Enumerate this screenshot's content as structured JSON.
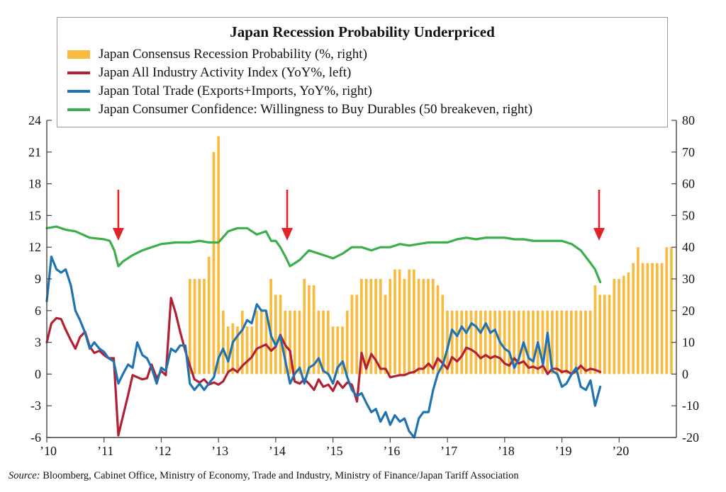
{
  "colors": {
    "bar": "#F9BB3D",
    "activity": "#B22033",
    "trade": "#1F73B1",
    "confidence": "#3AAF4B",
    "arrow": "#E2232A",
    "axis": "#444444"
  },
  "source": {
    "label": "Source:",
    "text": "Bloomberg, Cabinet Office, Ministry of Economy, Trade and Industry, Ministry of Finance/Japan Tariff Association"
  },
  "chart_data": {
    "type": "combo",
    "title": "Japan Recession Probability Underpriced",
    "legend": [
      {
        "name": "Japan Consensus Recession Probability (%, right)",
        "kind": "bar",
        "color": "#F9BB3D"
      },
      {
        "name": "Japan All Industry Activity Index (YoY%, left)",
        "kind": "line",
        "color": "#B22033"
      },
      {
        "name": "Japan Total Trade (Exports+Imports, YoY%, right)",
        "kind": "line",
        "color": "#1F73B1"
      },
      {
        "name": "Japan Consumer Confidence: Willingness to Buy Durables (50 breakeven, right)",
        "kind": "line",
        "color": "#3AAF4B"
      }
    ],
    "x_range": [
      2010,
      2021
    ],
    "x_ticks": [
      {
        "value": 2010,
        "label": "’10"
      },
      {
        "value": 2011,
        "label": "’11"
      },
      {
        "value": 2012,
        "label": "’12"
      },
      {
        "value": 2013,
        "label": "’13"
      },
      {
        "value": 2014,
        "label": "’14"
      },
      {
        "value": 2015,
        "label": "’15"
      },
      {
        "value": 2016,
        "label": "’16"
      },
      {
        "value": 2017,
        "label": "’17"
      },
      {
        "value": 2018,
        "label": "’18"
      },
      {
        "value": 2019,
        "label": "’19"
      },
      {
        "value": 2020,
        "label": "’20"
      }
    ],
    "left_axis": {
      "range": [
        -6,
        24
      ],
      "ticks": [
        -6,
        -3,
        0,
        3,
        6,
        9,
        12,
        15,
        18,
        21,
        24
      ]
    },
    "right_axis": {
      "range": [
        -20,
        80
      ],
      "ticks": [
        -20,
        -10,
        0,
        10,
        20,
        30,
        40,
        50,
        60,
        70,
        80
      ]
    },
    "arrows": [
      2011.25,
      2014.2,
      2019.65
    ],
    "recession_probability": {
      "axis": "right",
      "x_start": 2012.5,
      "x_step": 0.0833,
      "values": [
        30,
        30,
        30,
        30,
        37,
        70,
        75,
        20,
        15,
        16,
        15,
        20,
        15,
        15,
        20,
        20,
        20,
        30,
        25,
        25,
        20,
        20,
        20,
        20,
        30,
        28,
        28,
        20,
        20,
        20,
        15,
        15,
        15,
        20,
        25,
        25,
        30,
        30,
        30,
        30,
        30,
        25,
        30,
        33,
        33,
        30,
        33,
        33,
        30,
        30,
        30,
        30,
        28,
        25,
        20,
        20,
        20,
        20,
        20,
        20,
        20,
        20,
        20,
        20,
        20,
        20,
        20,
        20,
        20,
        20,
        20,
        20,
        20,
        20,
        20,
        20,
        20,
        20,
        20,
        20,
        20,
        20,
        20,
        20,
        20,
        28,
        25,
        25,
        25,
        30,
        30,
        31,
        32,
        35,
        40,
        35,
        35,
        35,
        35,
        35,
        40,
        40
      ]
    },
    "activity_index": {
      "axis": "left",
      "points": [
        [
          2010.0,
          3.0
        ],
        [
          2010.08,
          4.8
        ],
        [
          2010.17,
          5.3
        ],
        [
          2010.25,
          5.2
        ],
        [
          2010.33,
          4.2
        ],
        [
          2010.42,
          3.2
        ],
        [
          2010.5,
          2.4
        ],
        [
          2010.58,
          3.5
        ],
        [
          2010.67,
          4.0
        ],
        [
          2010.75,
          2.6
        ],
        [
          2010.83,
          2.0
        ],
        [
          2010.92,
          2.2
        ],
        [
          2011.0,
          1.8
        ],
        [
          2011.08,
          1.5
        ],
        [
          2011.17,
          1.5
        ],
        [
          2011.25,
          -5.8
        ],
        [
          2011.33,
          -4.0
        ],
        [
          2011.42,
          -2.0
        ],
        [
          2011.5,
          -0.1
        ],
        [
          2011.58,
          -0.3
        ],
        [
          2011.67,
          -0.5
        ],
        [
          2011.75,
          -0.4
        ],
        [
          2011.83,
          0.9
        ],
        [
          2011.92,
          -0.4
        ],
        [
          2012.0,
          0.3
        ],
        [
          2012.08,
          -0.1
        ],
        [
          2012.17,
          7.2
        ],
        [
          2012.25,
          5.8
        ],
        [
          2012.33,
          4.0
        ],
        [
          2012.42,
          2.2
        ],
        [
          2012.5,
          0.8
        ],
        [
          2012.58,
          -0.5
        ],
        [
          2012.67,
          -0.8
        ],
        [
          2012.75,
          -0.5
        ],
        [
          2012.83,
          -1.0
        ],
        [
          2012.92,
          -0.8
        ],
        [
          2013.0,
          -1.0
        ],
        [
          2013.08,
          -0.7
        ],
        [
          2013.17,
          0.2
        ],
        [
          2013.25,
          0.5
        ],
        [
          2013.33,
          0.2
        ],
        [
          2013.42,
          0.8
        ],
        [
          2013.5,
          1.2
        ],
        [
          2013.58,
          1.6
        ],
        [
          2013.67,
          2.4
        ],
        [
          2013.75,
          2.6
        ],
        [
          2013.83,
          2.8
        ],
        [
          2013.92,
          2.2
        ],
        [
          2014.0,
          2.6
        ],
        [
          2014.08,
          3.7
        ],
        [
          2014.17,
          2.7
        ],
        [
          2014.25,
          2.2
        ],
        [
          2014.33,
          -0.7
        ],
        [
          2014.42,
          -0.9
        ],
        [
          2014.5,
          -0.5
        ],
        [
          2014.58,
          -0.9
        ],
        [
          2014.67,
          -1.5
        ],
        [
          2014.75,
          -0.5
        ],
        [
          2014.83,
          -1.2
        ],
        [
          2014.92,
          -1.0
        ],
        [
          2015.0,
          -1.6
        ],
        [
          2015.08,
          -0.7
        ],
        [
          2015.17,
          -1.3
        ],
        [
          2015.25,
          -0.8
        ],
        [
          2015.33,
          -1.0
        ],
        [
          2015.42,
          -2.6
        ],
        [
          2015.5,
          2.0
        ],
        [
          2015.58,
          0.5
        ],
        [
          2015.67,
          1.9
        ],
        [
          2015.75,
          1.3
        ],
        [
          2015.83,
          0.5
        ],
        [
          2015.92,
          0.5
        ],
        [
          2016.0,
          -0.3
        ],
        [
          2016.08,
          -0.2
        ],
        [
          2016.17,
          -0.1
        ],
        [
          2016.25,
          -0.1
        ],
        [
          2016.33,
          0.1
        ],
        [
          2016.42,
          0.2
        ],
        [
          2016.5,
          0.5
        ],
        [
          2016.58,
          0.5
        ],
        [
          2016.67,
          1.0
        ],
        [
          2016.75,
          0.5
        ],
        [
          2016.83,
          1.5
        ],
        [
          2016.92,
          1.0
        ],
        [
          2017.0,
          0.5
        ],
        [
          2017.08,
          1.6
        ],
        [
          2017.17,
          1.2
        ],
        [
          2017.25,
          1.7
        ],
        [
          2017.33,
          2.5
        ],
        [
          2017.42,
          2.3
        ],
        [
          2017.5,
          2.0
        ],
        [
          2017.58,
          1.5
        ],
        [
          2017.67,
          1.8
        ],
        [
          2017.75,
          1.5
        ],
        [
          2017.83,
          1.7
        ],
        [
          2017.92,
          1.5
        ],
        [
          2018.0,
          1.0
        ],
        [
          2018.08,
          0.8
        ],
        [
          2018.17,
          1.5
        ],
        [
          2018.25,
          1.0
        ],
        [
          2018.33,
          1.2
        ],
        [
          2018.42,
          0.6
        ],
        [
          2018.5,
          0.7
        ],
        [
          2018.58,
          0.5
        ],
        [
          2018.67,
          0.8
        ],
        [
          2018.75,
          0.0
        ],
        [
          2018.83,
          0.5
        ],
        [
          2018.92,
          0.5
        ],
        [
          2019.0,
          0.2
        ],
        [
          2019.08,
          0.3
        ],
        [
          2019.17,
          0.0
        ],
        [
          2019.25,
          0.3
        ],
        [
          2019.33,
          0.8
        ],
        [
          2019.42,
          0.3
        ],
        [
          2019.5,
          0.5
        ],
        [
          2019.58,
          0.4
        ],
        [
          2019.67,
          0.2
        ]
      ]
    },
    "total_trade": {
      "axis": "right",
      "points": [
        [
          2010.0,
          23
        ],
        [
          2010.08,
          37
        ],
        [
          2010.17,
          33
        ],
        [
          2010.25,
          32
        ],
        [
          2010.33,
          33
        ],
        [
          2010.42,
          28
        ],
        [
          2010.5,
          20
        ],
        [
          2010.58,
          17
        ],
        [
          2010.67,
          13
        ],
        [
          2010.75,
          8
        ],
        [
          2010.83,
          10
        ],
        [
          2010.92,
          8
        ],
        [
          2011.0,
          7
        ],
        [
          2011.08,
          5
        ],
        [
          2011.17,
          4
        ],
        [
          2011.25,
          -3
        ],
        [
          2011.33,
          0
        ],
        [
          2011.42,
          3
        ],
        [
          2011.5,
          2
        ],
        [
          2011.58,
          10
        ],
        [
          2011.67,
          6
        ],
        [
          2011.75,
          5
        ],
        [
          2011.83,
          2
        ],
        [
          2011.92,
          -3
        ],
        [
          2012.0,
          2
        ],
        [
          2012.08,
          1
        ],
        [
          2012.17,
          8
        ],
        [
          2012.25,
          7
        ],
        [
          2012.33,
          9
        ],
        [
          2012.42,
          9
        ],
        [
          2012.5,
          -3
        ],
        [
          2012.58,
          -5
        ],
        [
          2012.67,
          -3
        ],
        [
          2012.75,
          -5
        ],
        [
          2012.83,
          -3
        ],
        [
          2012.92,
          -1
        ],
        [
          2013.0,
          5
        ],
        [
          2013.08,
          8
        ],
        [
          2013.17,
          4
        ],
        [
          2013.25,
          10
        ],
        [
          2013.33,
          12
        ],
        [
          2013.42,
          14
        ],
        [
          2013.5,
          17
        ],
        [
          2013.58,
          16
        ],
        [
          2013.67,
          22
        ],
        [
          2013.75,
          20
        ],
        [
          2013.83,
          20
        ],
        [
          2013.92,
          12
        ],
        [
          2014.0,
          9
        ],
        [
          2014.08,
          12
        ],
        [
          2014.17,
          4
        ],
        [
          2014.25,
          -3
        ],
        [
          2014.33,
          0
        ],
        [
          2014.42,
          2
        ],
        [
          2014.5,
          -3
        ],
        [
          2014.58,
          2
        ],
        [
          2014.67,
          3
        ],
        [
          2014.75,
          5
        ],
        [
          2014.83,
          1
        ],
        [
          2014.92,
          0
        ],
        [
          2015.0,
          -3
        ],
        [
          2015.08,
          2
        ],
        [
          2015.17,
          4
        ],
        [
          2015.25,
          -1
        ],
        [
          2015.33,
          -5
        ],
        [
          2015.42,
          -7
        ],
        [
          2015.5,
          -6
        ],
        [
          2015.58,
          -9
        ],
        [
          2015.67,
          -12
        ],
        [
          2015.75,
          -11
        ],
        [
          2015.83,
          -15
        ],
        [
          2015.92,
          -12
        ],
        [
          2016.0,
          -16
        ],
        [
          2016.08,
          -13
        ],
        [
          2016.17,
          -15
        ],
        [
          2016.25,
          -14
        ],
        [
          2016.33,
          -18
        ],
        [
          2016.42,
          -20
        ],
        [
          2016.5,
          -14
        ],
        [
          2016.58,
          -12
        ],
        [
          2016.67,
          -12
        ],
        [
          2016.75,
          -5
        ],
        [
          2016.83,
          0
        ],
        [
          2016.92,
          3
        ],
        [
          2017.0,
          8
        ],
        [
          2017.08,
          14
        ],
        [
          2017.17,
          12
        ],
        [
          2017.25,
          15
        ],
        [
          2017.33,
          13
        ],
        [
          2017.42,
          16
        ],
        [
          2017.5,
          15
        ],
        [
          2017.58,
          13
        ],
        [
          2017.67,
          16
        ],
        [
          2017.75,
          13
        ],
        [
          2017.83,
          14
        ],
        [
          2017.92,
          10
        ],
        [
          2018.0,
          8
        ],
        [
          2018.08,
          7
        ],
        [
          2018.17,
          2
        ],
        [
          2018.25,
          5
        ],
        [
          2018.33,
          10
        ],
        [
          2018.42,
          5
        ],
        [
          2018.5,
          4
        ],
        [
          2018.58,
          10
        ],
        [
          2018.67,
          3
        ],
        [
          2018.75,
          13
        ],
        [
          2018.83,
          1
        ],
        [
          2018.92,
          0
        ],
        [
          2019.0,
          -4
        ],
        [
          2019.08,
          -3
        ],
        [
          2019.17,
          0
        ],
        [
          2019.25,
          2
        ],
        [
          2019.33,
          -4
        ],
        [
          2019.42,
          -5
        ],
        [
          2019.5,
          -2
        ],
        [
          2019.58,
          -10
        ],
        [
          2019.67,
          -4
        ]
      ]
    },
    "consumer_confidence": {
      "axis": "right",
      "points": [
        [
          2010.0,
          46
        ],
        [
          2010.17,
          46.5
        ],
        [
          2010.33,
          45.5
        ],
        [
          2010.5,
          45
        ],
        [
          2010.75,
          43
        ],
        [
          2011.0,
          42.5
        ],
        [
          2011.1,
          42
        ],
        [
          2011.18,
          39
        ],
        [
          2011.25,
          34
        ],
        [
          2011.33,
          35.5
        ],
        [
          2011.5,
          37.5
        ],
        [
          2011.67,
          39
        ],
        [
          2011.83,
          40
        ],
        [
          2012.0,
          41
        ],
        [
          2012.25,
          41.5
        ],
        [
          2012.5,
          41.5
        ],
        [
          2012.67,
          42
        ],
        [
          2012.83,
          41.5
        ],
        [
          2013.0,
          41.5
        ],
        [
          2013.17,
          45
        ],
        [
          2013.33,
          46
        ],
        [
          2013.5,
          46
        ],
        [
          2013.67,
          44
        ],
        [
          2013.83,
          45
        ],
        [
          2013.92,
          42
        ],
        [
          2014.0,
          42
        ],
        [
          2014.08,
          40
        ],
        [
          2014.17,
          37
        ],
        [
          2014.25,
          34
        ],
        [
          2014.42,
          36
        ],
        [
          2014.58,
          39
        ],
        [
          2014.75,
          38
        ],
        [
          2014.92,
          37
        ],
        [
          2015.0,
          36.5
        ],
        [
          2015.17,
          38
        ],
        [
          2015.33,
          40
        ],
        [
          2015.5,
          40
        ],
        [
          2015.67,
          39
        ],
        [
          2015.83,
          40
        ],
        [
          2016.0,
          40
        ],
        [
          2016.17,
          41
        ],
        [
          2016.33,
          40.5
        ],
        [
          2016.5,
          41
        ],
        [
          2016.67,
          41.5
        ],
        [
          2016.83,
          41.5
        ],
        [
          2017.0,
          41.5
        ],
        [
          2017.17,
          42.5
        ],
        [
          2017.33,
          43
        ],
        [
          2017.5,
          42.5
        ],
        [
          2017.67,
          43
        ],
        [
          2017.83,
          43
        ],
        [
          2018.0,
          43
        ],
        [
          2018.17,
          42.5
        ],
        [
          2018.33,
          42.5
        ],
        [
          2018.5,
          42
        ],
        [
          2018.67,
          42
        ],
        [
          2018.83,
          42
        ],
        [
          2019.0,
          42
        ],
        [
          2019.17,
          41
        ],
        [
          2019.33,
          39
        ],
        [
          2019.5,
          35
        ],
        [
          2019.58,
          33
        ],
        [
          2019.67,
          29
        ]
      ]
    }
  }
}
